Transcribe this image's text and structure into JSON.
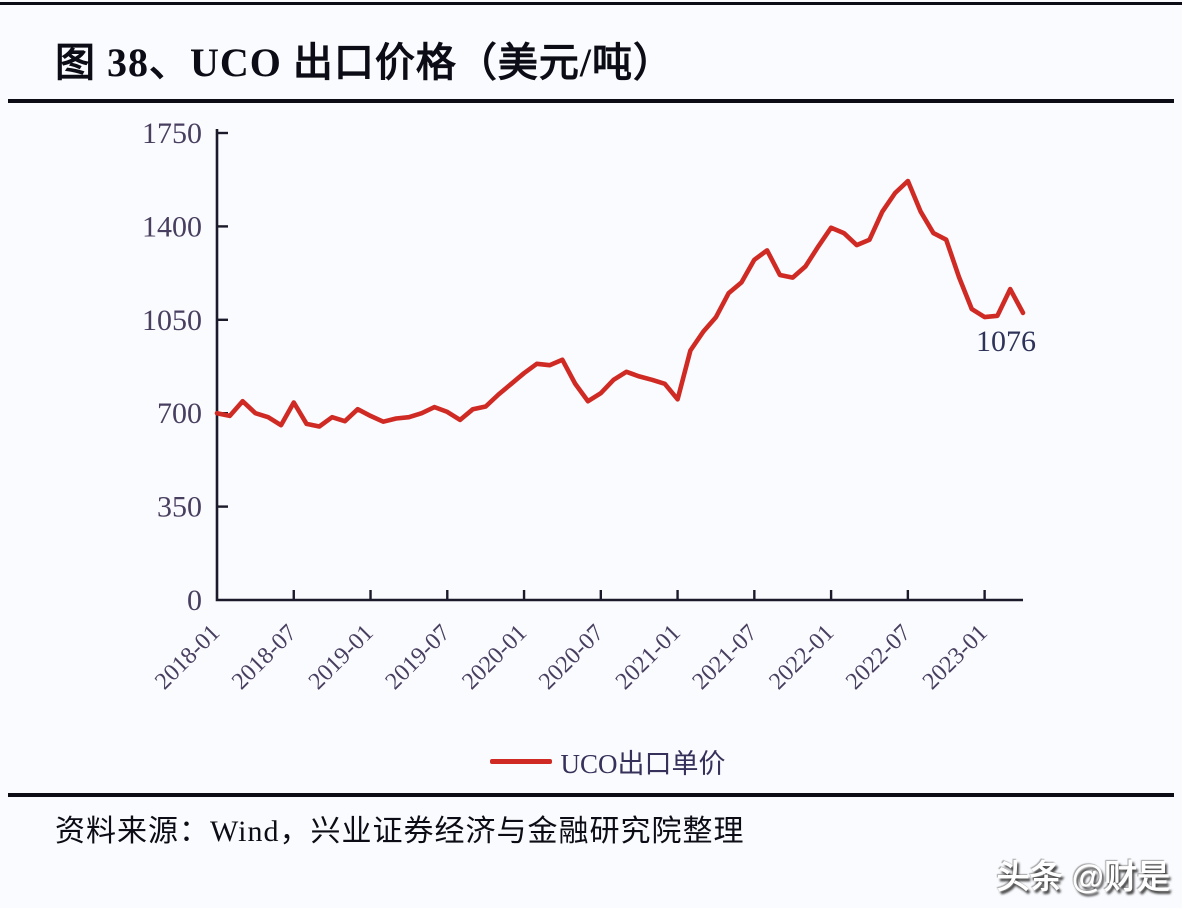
{
  "page": {
    "background": "#fafbfe",
    "watermark_text": "头条 @财是"
  },
  "header": {
    "title": "图 38、UCO 出口价格（美元/吨）"
  },
  "footer": {
    "source_text": "资料来源：Wind，兴业证券经济与金融研究院整理"
  },
  "legend": {
    "entries": [
      {
        "label": "UCO出口单价",
        "color": "#cf2b24"
      }
    ]
  },
  "chart_data": {
    "type": "line",
    "title": "图 38、UCO 出口价格（美元/吨）",
    "ylabel": "美元/吨",
    "xlabel": "",
    "ylim": [
      0,
      1750
    ],
    "yticks": [
      0,
      350,
      700,
      1050,
      1400,
      1750
    ],
    "grid": false,
    "legend_position": "bottom",
    "xtick_every": 6,
    "xtick_labels": [
      "2018-01",
      "2018-07",
      "2019-01",
      "2019-07",
      "2020-01",
      "2020-07",
      "2021-01",
      "2021-07",
      "2022-01",
      "2022-07",
      "2023-01"
    ],
    "end_label": "1076",
    "x": [
      "2018-01",
      "2018-02",
      "2018-03",
      "2018-04",
      "2018-05",
      "2018-06",
      "2018-07",
      "2018-08",
      "2018-09",
      "2018-10",
      "2018-11",
      "2018-12",
      "2019-01",
      "2019-02",
      "2019-03",
      "2019-04",
      "2019-05",
      "2019-06",
      "2019-07",
      "2019-08",
      "2019-09",
      "2019-10",
      "2019-11",
      "2019-12",
      "2020-01",
      "2020-02",
      "2020-03",
      "2020-04",
      "2020-05",
      "2020-06",
      "2020-07",
      "2020-08",
      "2020-09",
      "2020-10",
      "2020-11",
      "2020-12",
      "2021-01",
      "2021-02",
      "2021-03",
      "2021-04",
      "2021-05",
      "2021-06",
      "2021-07",
      "2021-08",
      "2021-09",
      "2021-10",
      "2021-11",
      "2021-12",
      "2022-01",
      "2022-02",
      "2022-03",
      "2022-04",
      "2022-05",
      "2022-06",
      "2022-07",
      "2022-08",
      "2022-09",
      "2022-10",
      "2022-11",
      "2022-12",
      "2023-01",
      "2023-02",
      "2023-03",
      "2023-04"
    ],
    "series": [
      {
        "name": "UCO出口单价",
        "color": "#cf2b24",
        "values": [
          700,
          690,
          745,
          700,
          685,
          655,
          740,
          660,
          650,
          685,
          670,
          715,
          690,
          668,
          680,
          685,
          700,
          723,
          705,
          675,
          715,
          725,
          770,
          810,
          850,
          885,
          880,
          900,
          810,
          745,
          775,
          825,
          855,
          838,
          825,
          810,
          752,
          935,
          1005,
          1060,
          1150,
          1190,
          1275,
          1310,
          1218,
          1208,
          1250,
          1325,
          1395,
          1375,
          1330,
          1350,
          1455,
          1525,
          1570,
          1455,
          1375,
          1350,
          1210,
          1090,
          1060,
          1065,
          1165,
          1076
        ]
      }
    ],
    "colors": {
      "axis": "#1a1a2b",
      "tick_label": "#483e60",
      "end_label": "#2e3359"
    }
  }
}
